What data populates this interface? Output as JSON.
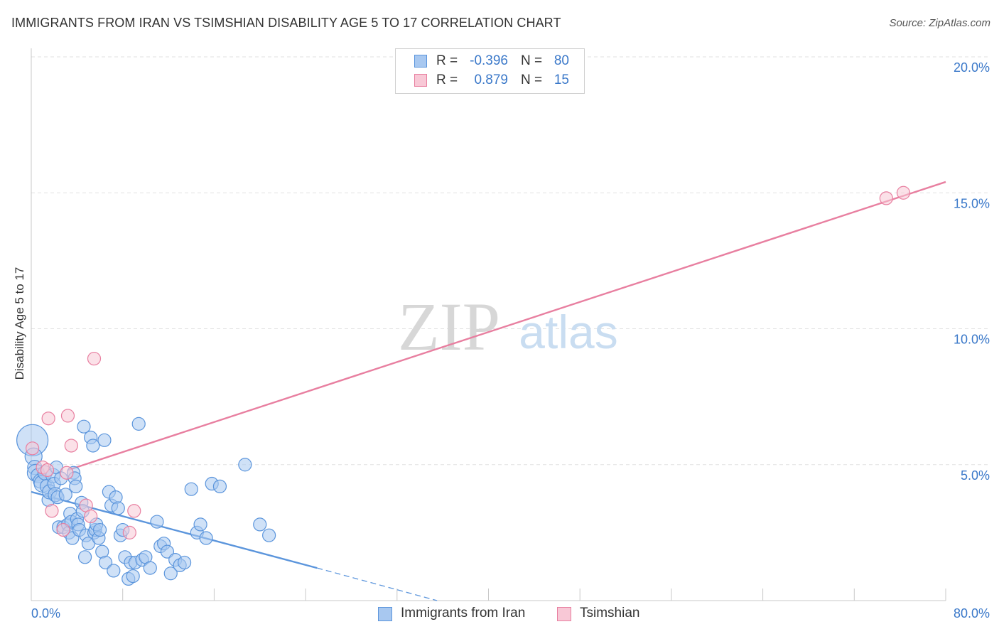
{
  "header": {
    "title": "IMMIGRANTS FROM IRAN VS TSIMSHIAN DISABILITY AGE 5 TO 17 CORRELATION CHART",
    "source": "Source: ZipAtlas.com"
  },
  "stats": [
    {
      "r_label": "R =",
      "r_value": "-0.396",
      "n_label": "N =",
      "n_value": "80",
      "color": "#a8c8f0",
      "border": "#5b95dc"
    },
    {
      "r_label": "R =",
      "r_value": "0.879",
      "n_label": "N =",
      "n_value": "15",
      "color": "#f8c8d6",
      "border": "#e87fa0"
    }
  ],
  "legend": [
    {
      "label": "Immigrants from Iran",
      "color": "#a8c8f0",
      "border": "#5b95dc"
    },
    {
      "label": "Tsimshian",
      "color": "#f8c8d6",
      "border": "#e87fa0"
    }
  ],
  "watermark": {
    "zip": "ZIP",
    "atlas": "atlas"
  },
  "chart_data": {
    "type": "scatter",
    "title": "IMMIGRANTS FROM IRAN VS TSIMSHIAN DISABILITY AGE 5 TO 17 CORRELATION CHART",
    "xlabel": "",
    "ylabel": "Disability Age 5 to 17",
    "xlim": [
      0,
      80
    ],
    "ylim": [
      0,
      20
    ],
    "x_ticks": [
      {
        "value": 0,
        "label": "0.0%"
      },
      {
        "value": 80,
        "label": "80.0%"
      }
    ],
    "y_ticks": [
      {
        "value": 5,
        "label": "5.0%"
      },
      {
        "value": 10,
        "label": "10.0%"
      },
      {
        "value": 15,
        "label": "15.0%"
      },
      {
        "value": 20,
        "label": "20.0%"
      }
    ],
    "grid": true,
    "legend_position": "bottom-center",
    "series": [
      {
        "name": "Immigrants from Iran",
        "color": "#5b95dc",
        "fill": "#a8c8f0",
        "points": [
          [
            0.1,
            5.9,
            22
          ],
          [
            0.2,
            5.3,
            12
          ],
          [
            0.3,
            4.9,
            10
          ],
          [
            0.4,
            4.7,
            12
          ],
          [
            0.6,
            4.6,
            10
          ],
          [
            0.8,
            4.4,
            10
          ],
          [
            1.0,
            4.3,
            12
          ],
          [
            1.2,
            4.7,
            10
          ],
          [
            1.4,
            4.2,
            10
          ],
          [
            1.5,
            3.7,
            9
          ],
          [
            1.6,
            4.0,
            10
          ],
          [
            1.9,
            4.6,
            10
          ],
          [
            2.0,
            4.3,
            9
          ],
          [
            2.1,
            3.9,
            10
          ],
          [
            2.2,
            4.9,
            9
          ],
          [
            2.3,
            3.8,
            9
          ],
          [
            2.4,
            2.7,
            9
          ],
          [
            2.6,
            4.5,
            9
          ],
          [
            2.8,
            2.7,
            9
          ],
          [
            3.0,
            3.9,
            9
          ],
          [
            3.2,
            2.8,
            9
          ],
          [
            3.3,
            2.5,
            9
          ],
          [
            3.4,
            3.2,
            9
          ],
          [
            3.5,
            2.9,
            9
          ],
          [
            3.6,
            2.3,
            9
          ],
          [
            3.7,
            4.7,
            9
          ],
          [
            3.8,
            4.5,
            9
          ],
          [
            3.9,
            4.2,
            9
          ],
          [
            4.0,
            3.0,
            9
          ],
          [
            4.1,
            2.8,
            9
          ],
          [
            4.2,
            2.6,
            9
          ],
          [
            4.4,
            3.6,
            9
          ],
          [
            4.5,
            3.3,
            9
          ],
          [
            4.6,
            6.4,
            9
          ],
          [
            4.7,
            1.6,
            9
          ],
          [
            4.8,
            2.4,
            9
          ],
          [
            5.0,
            2.1,
            9
          ],
          [
            5.2,
            6.0,
            9
          ],
          [
            5.4,
            5.7,
            9
          ],
          [
            5.5,
            2.5,
            9
          ],
          [
            5.6,
            2.6,
            9
          ],
          [
            5.7,
            2.8,
            9
          ],
          [
            5.9,
            2.3,
            9
          ],
          [
            6.0,
            2.6,
            9
          ],
          [
            6.2,
            1.8,
            9
          ],
          [
            6.4,
            5.9,
            9
          ],
          [
            6.5,
            1.4,
            9
          ],
          [
            6.8,
            4.0,
            9
          ],
          [
            7.0,
            3.5,
            9
          ],
          [
            7.2,
            1.1,
            9
          ],
          [
            7.4,
            3.8,
            9
          ],
          [
            7.6,
            3.4,
            9
          ],
          [
            7.8,
            2.4,
            9
          ],
          [
            8.0,
            2.6,
            9
          ],
          [
            8.2,
            1.6,
            9
          ],
          [
            8.5,
            0.8,
            9
          ],
          [
            8.7,
            1.4,
            9
          ],
          [
            8.9,
            0.9,
            9
          ],
          [
            9.1,
            1.4,
            9
          ],
          [
            9.4,
            6.5,
            9
          ],
          [
            9.7,
            1.5,
            9
          ],
          [
            10.0,
            1.6,
            9
          ],
          [
            10.4,
            1.2,
            9
          ],
          [
            11.0,
            2.9,
            9
          ],
          [
            11.3,
            2.0,
            9
          ],
          [
            11.6,
            2.1,
            9
          ],
          [
            11.9,
            1.8,
            9
          ],
          [
            12.2,
            1.0,
            9
          ],
          [
            12.6,
            1.5,
            9
          ],
          [
            13.0,
            1.3,
            9
          ],
          [
            13.4,
            1.4,
            9
          ],
          [
            14.0,
            4.1,
            9
          ],
          [
            14.5,
            2.5,
            9
          ],
          [
            14.8,
            2.8,
            9
          ],
          [
            15.3,
            2.3,
            9
          ],
          [
            15.8,
            4.3,
            9
          ],
          [
            16.5,
            4.2,
            9
          ],
          [
            18.7,
            5.0,
            9
          ],
          [
            20.0,
            2.8,
            9
          ],
          [
            20.8,
            2.4,
            9
          ]
        ],
        "trend": {
          "x0": 0,
          "y0": 4.0,
          "x1": 25,
          "y1": 1.2,
          "dash_to_x": 35.5,
          "dash_to_y": 0.0
        }
      },
      {
        "name": "Tsimshian",
        "color": "#e87fa0",
        "fill": "#f8c8d6",
        "points": [
          [
            0.1,
            5.6,
            9
          ],
          [
            1.0,
            4.9,
            9
          ],
          [
            1.4,
            4.8,
            9
          ],
          [
            1.5,
            6.7,
            9
          ],
          [
            1.8,
            3.3,
            9
          ],
          [
            2.8,
            2.6,
            9
          ],
          [
            3.1,
            4.7,
            9
          ],
          [
            3.2,
            6.8,
            9
          ],
          [
            3.5,
            5.7,
            9
          ],
          [
            4.8,
            3.5,
            9
          ],
          [
            5.2,
            3.1,
            9
          ],
          [
            5.5,
            8.9,
            9
          ],
          [
            8.6,
            2.5,
            9
          ],
          [
            9.0,
            3.3,
            9
          ],
          [
            74.8,
            14.8,
            9
          ]
        ],
        "extra_points": [
          [
            76.3,
            15.0,
            9
          ]
        ],
        "trend": {
          "x0": 3.2,
          "y0": 4.8,
          "x1": 80,
          "y1": 15.4
        }
      }
    ]
  }
}
